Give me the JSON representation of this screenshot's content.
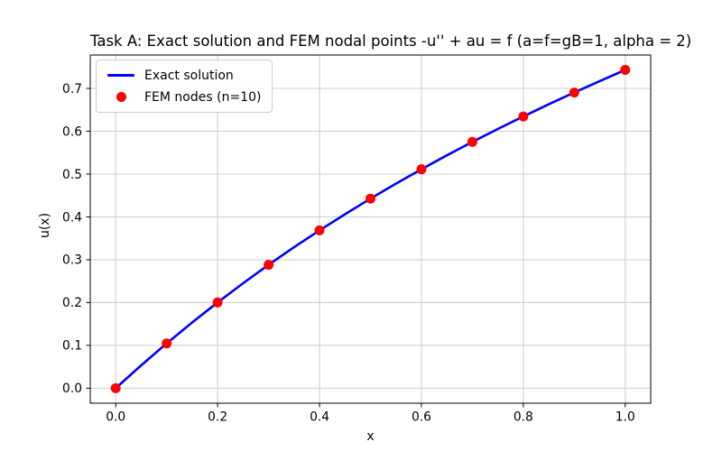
{
  "chart_data": {
    "type": "line",
    "title": "Task A: Exact solution and FEM nodal points -u'' + au = f (a=f=gB=1, alpha = 2)",
    "xlabel": "x",
    "ylabel": "u(x)",
    "xlim": [
      -0.05,
      1.05
    ],
    "ylim": [
      -0.035,
      0.778
    ],
    "grid": true,
    "grid_color": "#cccccc",
    "spine_color": "#000000",
    "background_color": "#ffffff",
    "legend_position": "upper left",
    "xticks": {
      "values": [
        0.0,
        0.2,
        0.4,
        0.6,
        0.8,
        1.0
      ],
      "labels": [
        "0.0",
        "0.2",
        "0.4",
        "0.6",
        "0.8",
        "1.0"
      ]
    },
    "yticks": {
      "values": [
        0.0,
        0.1,
        0.2,
        0.3,
        0.4,
        0.5,
        0.6,
        0.7
      ],
      "labels": [
        "0.0",
        "0.1",
        "0.2",
        "0.3",
        "0.4",
        "0.5",
        "0.6",
        "0.7"
      ]
    },
    "series": [
      {
        "name": "Exact solution",
        "type": "line",
        "color": "#0000ff",
        "linewidth": 2.6,
        "x": [
          0.0,
          0.05,
          0.1,
          0.15,
          0.2,
          0.25,
          0.3,
          0.35,
          0.4,
          0.45,
          0.5,
          0.55,
          0.6,
          0.65,
          0.7,
          0.75,
          0.8,
          0.85,
          0.9,
          0.95,
          1.0
        ],
        "y": [
          0.0,
          0.0535,
          0.1046,
          0.1535,
          0.2003,
          0.2451,
          0.288,
          0.3291,
          0.3685,
          0.4063,
          0.4427,
          0.4777,
          0.5113,
          0.5438,
          0.5751,
          0.6053,
          0.6346,
          0.6629,
          0.6904,
          0.7171,
          0.7432
        ]
      },
      {
        "name": "FEM nodes (n=10)",
        "type": "scatter",
        "color": "#ff0000",
        "markersize": 5.5,
        "x": [
          0.0,
          0.1,
          0.2,
          0.3,
          0.4,
          0.5,
          0.6,
          0.7,
          0.8,
          0.9,
          1.0
        ],
        "y": [
          0.0,
          0.1046,
          0.2003,
          0.288,
          0.3685,
          0.4427,
          0.5113,
          0.5751,
          0.6346,
          0.6904,
          0.7432
        ]
      }
    ]
  }
}
